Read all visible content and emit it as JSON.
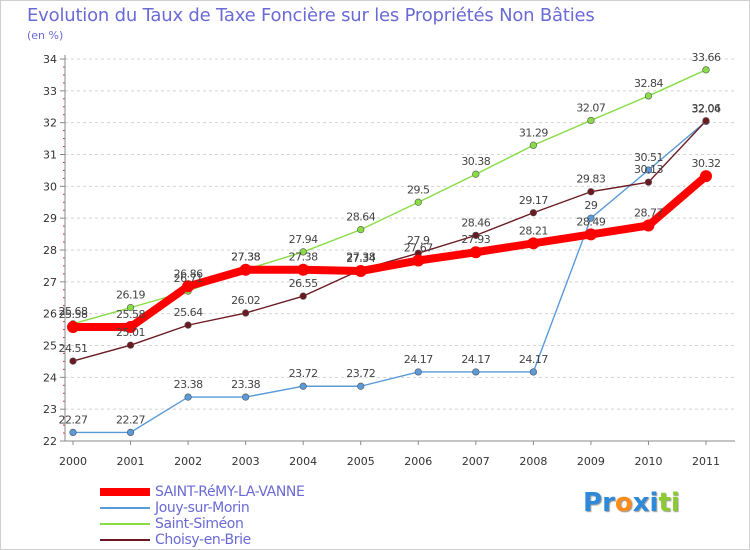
{
  "chart_data": {
    "type": "line",
    "title": "Evolution du Taux de Taxe Foncière sur les Propriétés Non Bâties",
    "subtitle": "(en %)",
    "x": [
      "2000",
      "2001",
      "2002",
      "2003",
      "2004",
      "2005",
      "2006",
      "2007",
      "2008",
      "2009",
      "2010",
      "2011"
    ],
    "ylim": [
      22,
      34
    ],
    "yticks": [
      "22",
      "23",
      "24",
      "25",
      "26",
      "27",
      "28",
      "29",
      "30",
      "31",
      "32",
      "33",
      "34"
    ],
    "grid": "horizontal-dashed",
    "legend_position": "bottom-left",
    "series": [
      {
        "name": "SAINT-RéMY-LA-VANNE",
        "color": "#ff0000",
        "values": [
          25.58,
          25.58,
          26.86,
          27.38,
          27.38,
          27.34,
          27.67,
          27.93,
          28.21,
          28.49,
          28.77,
          30.32
        ],
        "labels": [
          "25.58",
          "25.58",
          "26.86",
          "27.38",
          "27.38",
          "27.34",
          "27.67",
          "27.93",
          "28.21",
          "28.49",
          "28.77",
          "30.32"
        ]
      },
      {
        "name": "Jouy-sur-Morin",
        "color": "#5a9ad8",
        "values": [
          22.27,
          22.27,
          23.38,
          23.38,
          23.72,
          23.72,
          24.17,
          24.17,
          24.17,
          29,
          30.51,
          32.04
        ],
        "labels": [
          "22.27",
          "22.27",
          "23.38",
          "23.38",
          "23.72",
          "23.72",
          "24.17",
          "24.17",
          "24.17",
          "29",
          "30.51",
          "32.04"
        ]
      },
      {
        "name": "Saint-Siméon",
        "color": "#88dd44",
        "values": [
          25.68,
          26.19,
          26.71,
          27.38,
          27.94,
          28.64,
          29.5,
          30.38,
          31.29,
          32.07,
          32.84,
          33.66
        ],
        "labels": [
          "25.68",
          "26.19",
          "26.71",
          "27.38",
          "27.94",
          "28.64",
          "29.5",
          "30.38",
          "31.29",
          "32.07",
          "32.84",
          "33.66"
        ]
      },
      {
        "name": "Choisy-en-Brie",
        "color": "#6b1a22",
        "values": [
          24.51,
          25.01,
          25.64,
          26.02,
          26.55,
          27.38,
          27.9,
          28.46,
          29.17,
          29.83,
          30.13,
          32.06
        ],
        "labels": [
          "24.51",
          "25.01",
          "25.64",
          "26.02",
          "26.55",
          "27.38",
          "27.9",
          "28.46",
          "29.17",
          "29.83",
          "30.13",
          "32.06"
        ]
      }
    ]
  },
  "logo": {
    "letters": [
      "P",
      "r",
      "o",
      "x",
      "i",
      "t",
      "i"
    ],
    "colors": [
      "#2e8ad8",
      "#2e8ad8",
      "#ff8c1a",
      "#2e8ad8",
      "#2e8ad8",
      "#8ccc33",
      "#8ccc33"
    ]
  }
}
